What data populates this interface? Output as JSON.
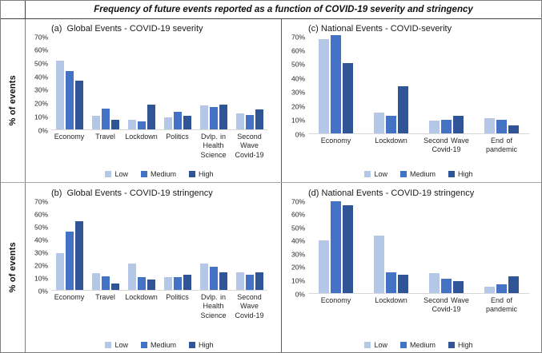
{
  "figure_title": "Frequency of future events reported as a function of COVID-19 severity and stringency",
  "ylabel": "% of events",
  "legend_labels": [
    "Low",
    "Medium",
    "High"
  ],
  "series_colors": [
    "#B4C7E7",
    "#4472C4",
    "#2F5597"
  ],
  "axis_baseline_color": "#d9d9d9",
  "chart_data": [
    {
      "panel": "a",
      "type": "bar",
      "title": "(a)  Global Events - COVID-19 severity",
      "categories": [
        "Economy",
        "Travel",
        "Lockdown",
        "Politics",
        "Dvlp. in Health Science",
        "Second Wave Covid-19"
      ],
      "series": [
        {
          "name": "Low",
          "values": [
            52,
            10,
            7,
            9,
            18,
            12
          ]
        },
        {
          "name": "Medium",
          "values": [
            44,
            16,
            6,
            13,
            17,
            11
          ]
        },
        {
          "name": "High",
          "values": [
            37,
            7,
            19,
            10,
            19,
            15
          ]
        }
      ],
      "ylabel": "% of events",
      "ylim": [
        0,
        70
      ],
      "ytick_step": 10,
      "ytick_format": "percent",
      "grid": false,
      "legend_position": "bottom"
    },
    {
      "panel": "c",
      "type": "bar",
      "title": "(c) National Events - COVID-severity",
      "categories": [
        "Economy",
        "Lockdown",
        "Second Wave Covid-19",
        "End of pandemic"
      ],
      "series": [
        {
          "name": "Low",
          "values": [
            68,
            15,
            9,
            11
          ]
        },
        {
          "name": "Medium",
          "values": [
            71,
            13,
            10,
            10
          ]
        },
        {
          "name": "High",
          "values": [
            51,
            34,
            13,
            6
          ]
        }
      ],
      "ylabel": "% of events",
      "ylim": [
        0,
        70
      ],
      "ytick_step": 10,
      "ytick_format": "percent",
      "grid": false,
      "legend_position": "bottom"
    },
    {
      "panel": "b",
      "type": "bar",
      "title": "(b)  Global Events - COVID-19 stringency",
      "categories": [
        "Economy",
        "Travel",
        "Lockdown",
        "Politics",
        "Dvlp. in Health Science",
        "Second Wave Covid-19"
      ],
      "series": [
        {
          "name": "Low",
          "values": [
            29,
            13,
            21,
            10,
            21,
            14
          ]
        },
        {
          "name": "Medium",
          "values": [
            46,
            11,
            10,
            10,
            18,
            12
          ]
        },
        {
          "name": "High",
          "values": [
            54,
            5,
            8,
            12,
            14,
            14
          ]
        }
      ],
      "ylabel": "% of events",
      "ylim": [
        0,
        70
      ],
      "ytick_step": 10,
      "ytick_format": "percent",
      "grid": false,
      "legend_position": "bottom"
    },
    {
      "panel": "d",
      "type": "bar",
      "title": "(d) National Events - COVID-19 stringency",
      "categories": [
        "Economy",
        "Lockdown",
        "Second Wave Covid-19",
        "End of pandemic"
      ],
      "series": [
        {
          "name": "Low",
          "values": [
            40,
            44,
            15,
            5
          ]
        },
        {
          "name": "Medium",
          "values": [
            70,
            16,
            11,
            7
          ]
        },
        {
          "name": "High",
          "values": [
            67,
            14,
            9,
            13
          ]
        }
      ],
      "ylabel": "% of events",
      "ylim": [
        0,
        70
      ],
      "ytick_step": 10,
      "ytick_format": "percent",
      "grid": false,
      "legend_position": "bottom"
    }
  ]
}
